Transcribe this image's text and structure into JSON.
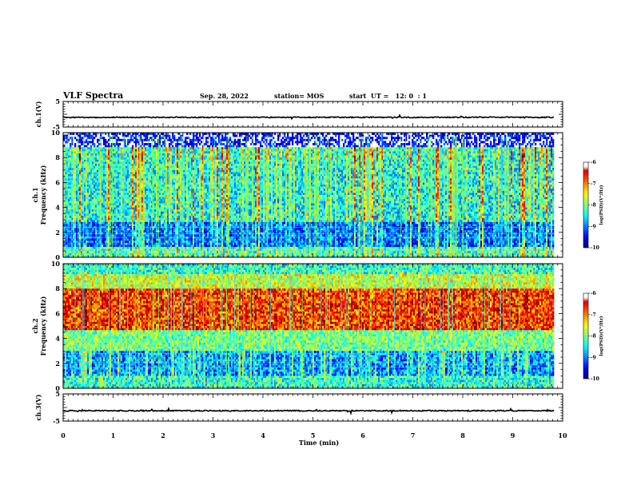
{
  "header": {
    "title": "VLF Spectra",
    "date": "Sep. 28, 2022",
    "station": "station= MOS",
    "start": "start  UT =   12: 0  : 1"
  },
  "chart_data": [
    {
      "type": "line",
      "name": "ch1-waveform",
      "ylabel": "ch.1(V)",
      "ylim": [
        -5,
        5
      ],
      "yticks": [
        "5",
        "-5"
      ],
      "xlim": [
        0,
        10
      ],
      "baseline": -1.2,
      "duration": 9.83
    },
    {
      "type": "heatmap",
      "name": "ch1-spectrogram",
      "ylabel": "ch.1\nFrequency (kHz)",
      "ylabel_lines": [
        "ch.1",
        "Frequency (kHz)"
      ],
      "ylim": [
        0,
        10
      ],
      "yticks": [
        "0",
        "2",
        "4",
        "6",
        "8",
        "10"
      ],
      "xlim": [
        0,
        10
      ],
      "duration": 9.83,
      "colorbar": {
        "label": "log(PSD)(V²/Hz)",
        "range": [
          -10,
          -6
        ],
        "ticks": [
          "-6",
          "-7",
          "-8",
          "-9",
          "-10"
        ]
      }
    },
    {
      "type": "heatmap",
      "name": "ch2-spectrogram",
      "ylabel": "ch.2\nFrequency (kHz)",
      "ylabel_lines": [
        "ch.2",
        "Frequency (kHz)"
      ],
      "ylim": [
        0,
        10
      ],
      "yticks": [
        "0",
        "2",
        "4",
        "6",
        "8",
        "10"
      ],
      "xlim": [
        0,
        10
      ],
      "duration": 9.83,
      "colorbar": {
        "label": "log(PSD)(V²/Hz)",
        "range": [
          -10,
          -6
        ],
        "ticks": [
          "-6",
          "-7",
          "-8",
          "-9",
          "-10"
        ]
      }
    },
    {
      "type": "line",
      "name": "ch3-waveform",
      "ylabel": "ch.3(V)",
      "ylim": [
        -5,
        5
      ],
      "yticks": [
        "5",
        "-5"
      ],
      "xlim": [
        0,
        10
      ],
      "baseline": -1.2,
      "duration": 9.83
    }
  ],
  "x_axis": {
    "label": "Time (min)",
    "ticks": [
      "0",
      "1",
      "2",
      "3",
      "4",
      "5",
      "6",
      "7",
      "8",
      "9",
      "10"
    ]
  }
}
